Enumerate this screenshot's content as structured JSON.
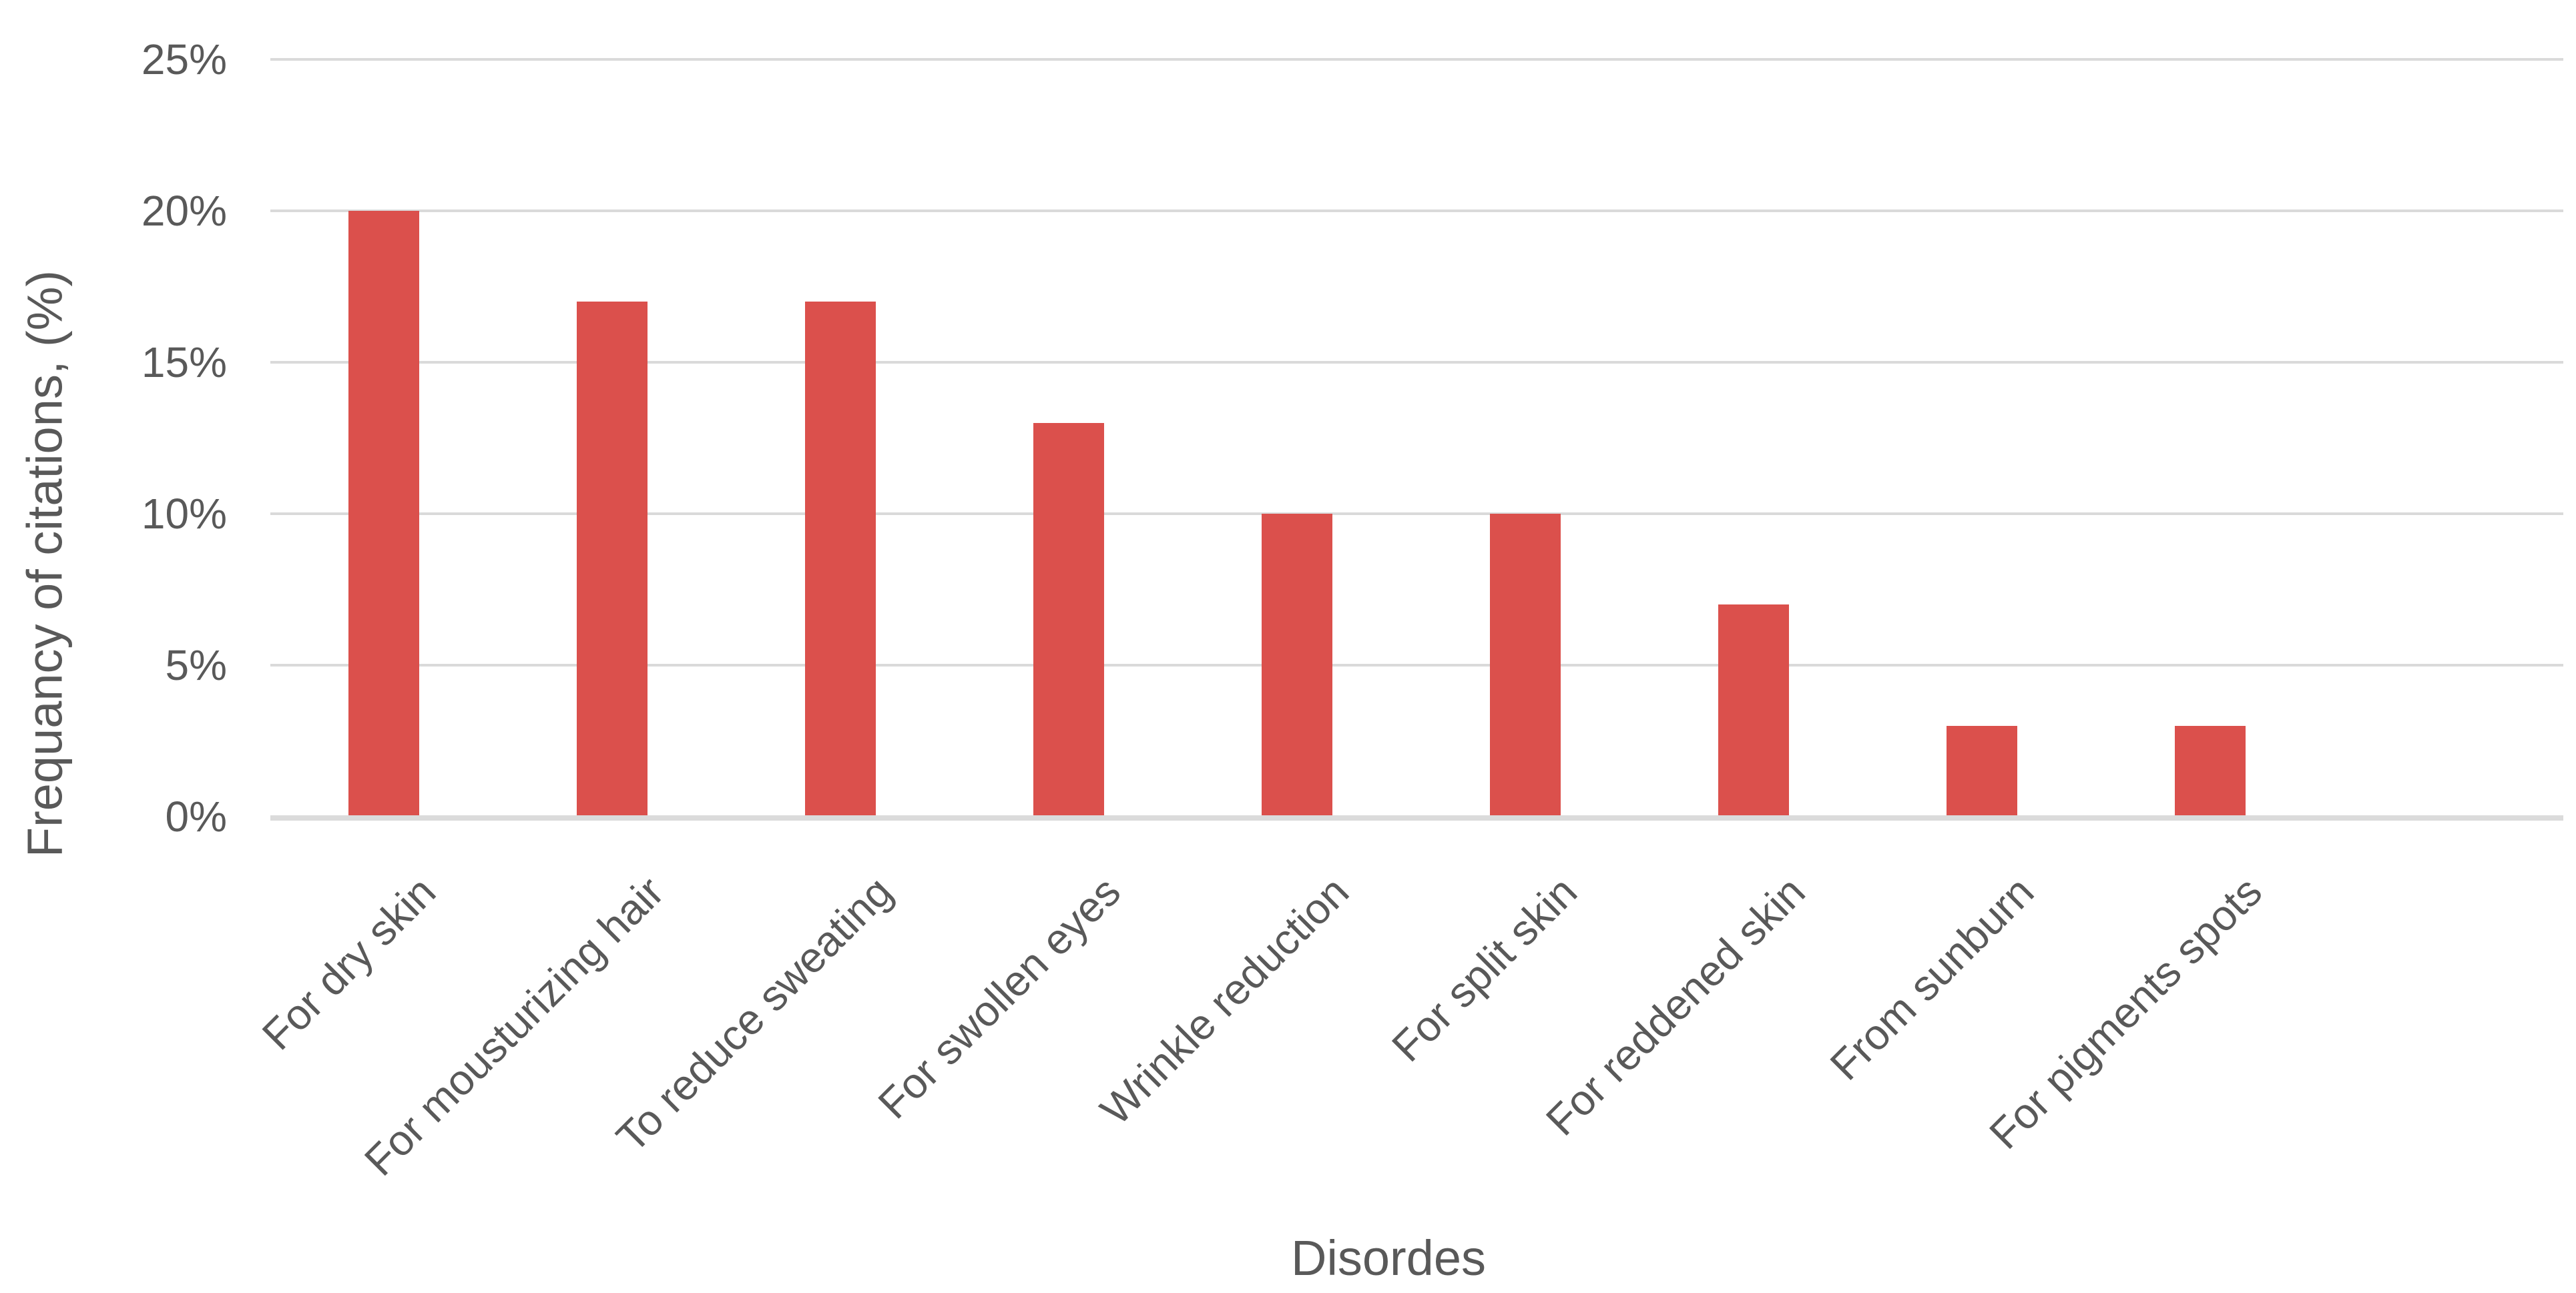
{
  "chart_data": {
    "type": "bar",
    "title": "",
    "categories": [
      "For dry skin",
      "For mousturizing hair",
      "To reduce sweating",
      "For swollen eyes",
      "Wrinkle reduction",
      "For split skin",
      "For reddened skin",
      "From sunburn",
      "For pigments spots"
    ],
    "values": [
      20,
      17,
      17,
      13,
      10,
      10,
      7,
      3,
      3
    ],
    "value_unit": "%",
    "xlabel": "Disordes",
    "ylabel": "Frequancy of citations, (%)",
    "ylim": [
      0,
      25
    ],
    "yticks": [
      0,
      5,
      10,
      15,
      20,
      25
    ],
    "ytick_labels": [
      "0%",
      "5%",
      "10%",
      "15%",
      "20%",
      "25%"
    ],
    "grid": "horizontal",
    "legend": "none",
    "bar_color": "#DB504C"
  },
  "colors": {
    "bar": "#DB504C",
    "gridline": "#DADADA",
    "axis_line": "#DBDBDB",
    "text": "#595959",
    "background": "#FFFFFF"
  }
}
